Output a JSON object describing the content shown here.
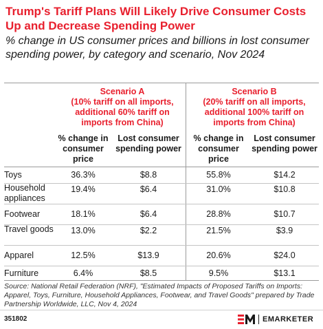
{
  "header": {
    "title": "Trump's Tariff Plans Will Likely Drive Consumer Costs Up and Decrease Spending Power",
    "subtitle": "% change in US consumer prices and billions in lost consumer spending power, by category and scenario, Nov 2024"
  },
  "chart_data": {
    "type": "table",
    "scenarios": [
      {
        "name": "Scenario A",
        "description": "(10% tariff on all imports, additional 60% tariff on imports from China)"
      },
      {
        "name": "Scenario B",
        "description": "(20% tariff on all imports, additional 100% tariff on imports from China)"
      }
    ],
    "columns": [
      "% change in consumer price",
      "Lost consumer spending power",
      "% change in consumer price",
      "Lost consumer spending power"
    ],
    "rows": [
      {
        "category": "Toys",
        "cells": [
          "36.3%",
          "$8.8",
          "55.8%",
          "$14.2"
        ]
      },
      {
        "category": "Household appliances",
        "cells": [
          "19.4%",
          "$6.4",
          "31.0%",
          "$10.8"
        ]
      },
      {
        "category": "Footwear",
        "cells": [
          "18.1%",
          "$6.4",
          "28.8%",
          "$10.7"
        ]
      },
      {
        "category": "Travel goods",
        "cells": [
          "13.0%",
          "$2.2",
          "21.5%",
          "$3.9"
        ]
      },
      {
        "category": "Apparel",
        "cells": [
          "12.5%",
          "$13.9",
          "20.6%",
          "$24.0"
        ]
      },
      {
        "category": "Furniture",
        "cells": [
          "6.4%",
          "$8.5",
          "9.5%",
          "$13.1"
        ]
      }
    ]
  },
  "footer": {
    "source": "Source: National Retail Federation (NRF), \"Estimated Impacts of Proposed Tariffs on Imports: Apparel, Toys, Furniture, Household Appliances, Footwear, and Travel Goods\" prepared by Trade Partnership Worldwide, LLC, Nov 4, 2024",
    "chart_id": "351802",
    "brand": "EMARKETER"
  },
  "colors": {
    "accent": "#e8202e",
    "text": "#1a1a1a",
    "rule": "#9a9a9a"
  }
}
